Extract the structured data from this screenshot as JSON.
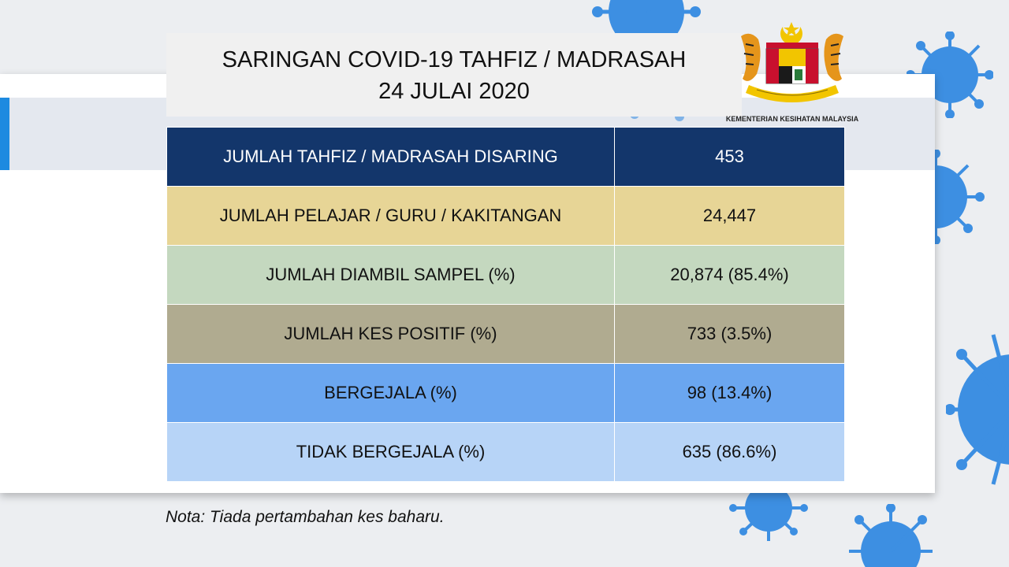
{
  "title": {
    "line1": "SARINGAN COVID-19 TAHFIZ / MADRASAH",
    "line2": "24 JULAI 2020"
  },
  "logo": {
    "caption": "KEMENTERIAN KESIHATAN MALAYSIA",
    "icon": "coat-of-arms-icon"
  },
  "table": {
    "rows": [
      {
        "label": "JUMLAH TAHFIZ / MADRASAH DISARING",
        "value": "453"
      },
      {
        "label": "JUMLAH PELAJAR / GURU / KAKITANGAN",
        "value": "24,447"
      },
      {
        "label": "JUMLAH DIAMBIL SAMPEL (%)",
        "value": "20,874 (85.4%)"
      },
      {
        "label": "JUMLAH KES POSITIF (%)",
        "value": "733 (3.5%)"
      },
      {
        "label": "BERGEJALA (%)",
        "value": "98 (13.4%)"
      },
      {
        "label": "TIDAK BERGEJALA (%)",
        "value": "635 (86.6%)"
      }
    ]
  },
  "note": "Nota: Tiada pertambahan kes baharu.",
  "colors": {
    "header_row": "#13366b",
    "row_yellow": "#e7d596",
    "row_green": "#c4d8bf",
    "row_khaki": "#b0ab90",
    "row_blue": "#6aa6f0",
    "row_lightblue": "#b7d4f7",
    "virus": "#1f7fe0"
  }
}
